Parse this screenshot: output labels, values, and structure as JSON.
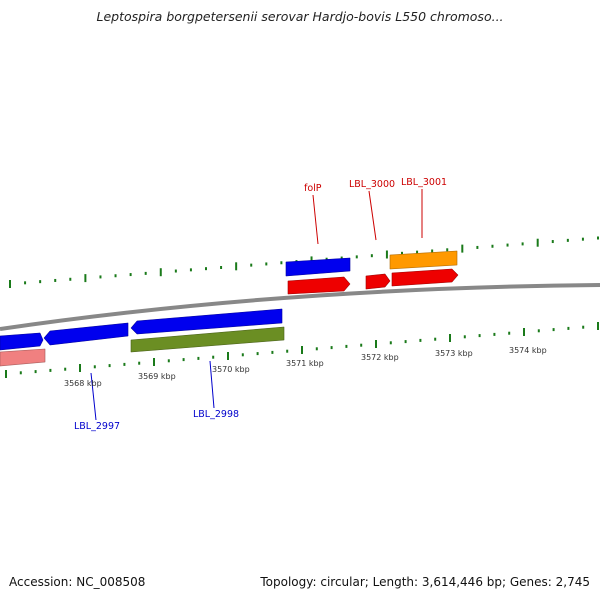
{
  "title": "Leptospira borgpetersenii serovar Hardjo-bovis L550 chromoso...",
  "footer": {
    "accession": "Accession: NC_008508",
    "summary": "Topology: circular; Length: 3,614,446 bp; Genes: 2,745"
  },
  "colors": {
    "backbone": "#888888",
    "tick": "#1a7a1a",
    "forward_label": "#cc0000",
    "reverse_label": "#0000cc",
    "blue": "#0000ee",
    "red": "#ee0000",
    "orange": "#ff9900",
    "olive": "#6b8e23",
    "pink": "#f08080"
  },
  "kbp_labels": [
    "3568 kbp",
    "3569 kbp",
    "3570 kbp",
    "3571 kbp",
    "3572 kbp",
    "3573 kbp",
    "3574 kbp"
  ],
  "gene_labels": {
    "forward": [
      "folP",
      "LBL_3000",
      "LBL_3001"
    ],
    "reverse": [
      "LBL_2997",
      "LBL_2998"
    ]
  }
}
